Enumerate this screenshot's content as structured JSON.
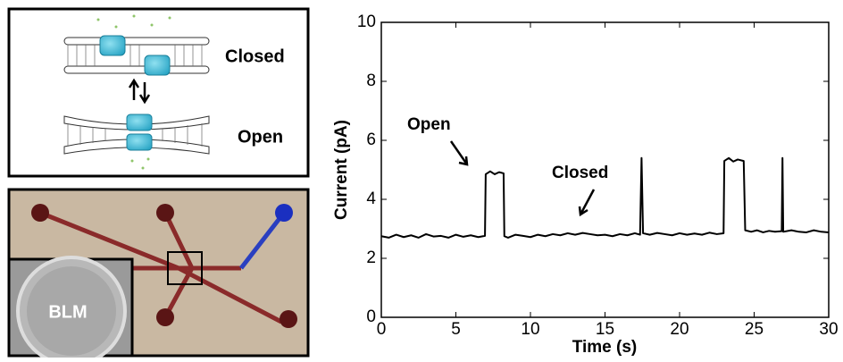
{
  "schematic": {
    "labels": [
      "Closed",
      "Open"
    ]
  },
  "photo": {
    "label": "BLM"
  },
  "chart_data": {
    "type": "line",
    "xlabel": "Time (s)",
    "ylabel": "Current (pA)",
    "annotations": [
      "Open",
      "Closed"
    ],
    "xlim": [
      0,
      30
    ],
    "ylim": [
      0,
      10
    ],
    "xticks": [
      0,
      5,
      10,
      15,
      20,
      25,
      30
    ],
    "yticks": [
      0,
      2,
      4,
      6,
      8,
      10
    ],
    "grid": false,
    "series": [
      {
        "color": "#000000",
        "x": [
          0,
          0.5,
          1,
          1.5,
          2,
          2.5,
          3,
          3.5,
          4,
          4.5,
          5,
          5.5,
          6,
          6.5,
          6.95,
          7.0,
          7.3,
          7.6,
          7.9,
          8.2,
          8.25,
          8.5,
          9,
          9.5,
          10,
          10.5,
          11,
          11.5,
          12,
          12.5,
          13,
          13.5,
          14,
          14.5,
          15,
          15.5,
          16,
          16.5,
          17,
          17.35,
          17.45,
          17.55,
          18,
          18.5,
          19,
          19.5,
          20,
          20.5,
          21,
          21.5,
          22,
          22.5,
          22.95,
          23.0,
          23.3,
          23.6,
          23.9,
          24.3,
          24.4,
          24.8,
          25.2,
          25.6,
          26,
          26.4,
          26.85,
          26.9,
          26.95,
          27.5,
          28,
          28.5,
          29,
          29.5,
          30
        ],
        "values": [
          2.75,
          2.7,
          2.8,
          2.72,
          2.78,
          2.7,
          2.82,
          2.74,
          2.76,
          2.7,
          2.8,
          2.73,
          2.78,
          2.72,
          2.76,
          4.85,
          4.95,
          4.85,
          4.92,
          4.88,
          2.75,
          2.7,
          2.8,
          2.76,
          2.72,
          2.8,
          2.75,
          2.82,
          2.78,
          2.85,
          2.8,
          2.86,
          2.82,
          2.78,
          2.8,
          2.75,
          2.82,
          2.78,
          2.85,
          2.8,
          5.4,
          2.85,
          2.8,
          2.86,
          2.82,
          2.78,
          2.85,
          2.8,
          2.84,
          2.8,
          2.87,
          2.82,
          2.85,
          5.3,
          5.4,
          5.28,
          5.35,
          5.3,
          2.95,
          2.9,
          2.95,
          2.88,
          2.93,
          2.9,
          2.92,
          5.4,
          2.9,
          2.95,
          2.9,
          2.88,
          2.95,
          2.9,
          2.88
        ]
      }
    ]
  }
}
